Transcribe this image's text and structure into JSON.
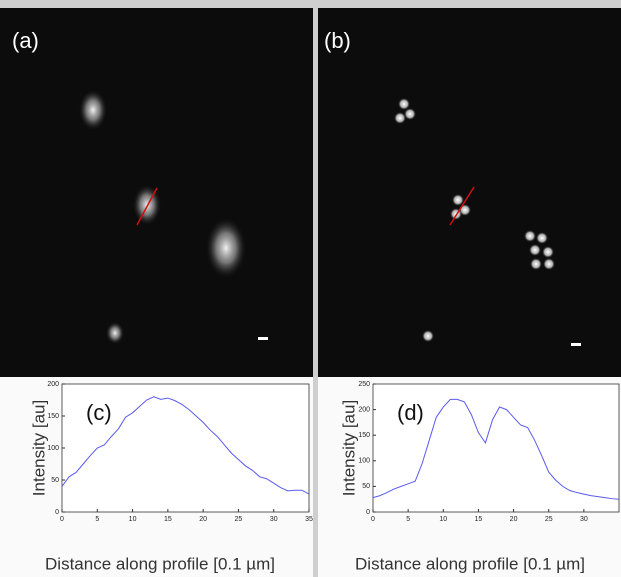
{
  "panels": [
    {
      "label": "(a)"
    },
    {
      "label": "(b)"
    }
  ],
  "chart_data": [
    {
      "type": "line",
      "annotation": "(c)",
      "ylabel": "Intensity [au]",
      "xlabel": "Distance along profile [0.1 µm]",
      "x": [
        0,
        1,
        2,
        3,
        4,
        5,
        6,
        7,
        8,
        9,
        10,
        11,
        12,
        13,
        14,
        15,
        16,
        17,
        18,
        19,
        20,
        21,
        22,
        23,
        24,
        25,
        26,
        27,
        28,
        29,
        30,
        31,
        32,
        33,
        34,
        35
      ],
      "series": [
        {
          "color": "#5a5af0",
          "values": [
            40,
            55,
            62,
            75,
            88,
            100,
            105,
            118,
            130,
            148,
            155,
            165,
            175,
            180,
            176,
            178,
            174,
            168,
            160,
            150,
            140,
            128,
            118,
            105,
            92,
            82,
            72,
            65,
            55,
            52,
            45,
            38,
            33,
            34,
            34,
            28
          ]
        }
      ],
      "xlim": [
        0,
        35
      ],
      "xticks": [
        0,
        5,
        10,
        15,
        20,
        25,
        30,
        35
      ],
      "ylim": [
        0,
        200
      ],
      "yticks": [
        0,
        50,
        100,
        150,
        200
      ]
    },
    {
      "type": "line",
      "annotation": "(d)",
      "ylabel": "Intensity [au]",
      "xlabel": "Distance along profile [0.1 µm]",
      "x": [
        0,
        1,
        2,
        3,
        4,
        5,
        6,
        7,
        8,
        9,
        10,
        11,
        12,
        13,
        14,
        15,
        16,
        17,
        18,
        19,
        20,
        21,
        22,
        23,
        24,
        25,
        26,
        27,
        28,
        29,
        30,
        31,
        32,
        33,
        34,
        35
      ],
      "series": [
        {
          "color": "#5a5af0",
          "values": [
            28,
            32,
            38,
            45,
            50,
            55,
            60,
            95,
            140,
            185,
            205,
            220,
            220,
            215,
            190,
            155,
            135,
            180,
            205,
            200,
            185,
            170,
            165,
            140,
            110,
            78,
            62,
            50,
            42,
            38,
            35,
            32,
            30,
            28,
            26,
            25
          ]
        }
      ],
      "xlim": [
        0,
        35
      ],
      "xticks": [
        0,
        5,
        10,
        15,
        20,
        25,
        30
      ],
      "ylim": [
        0,
        250
      ],
      "yticks": [
        0,
        50,
        100,
        150,
        200,
        250
      ]
    }
  ]
}
